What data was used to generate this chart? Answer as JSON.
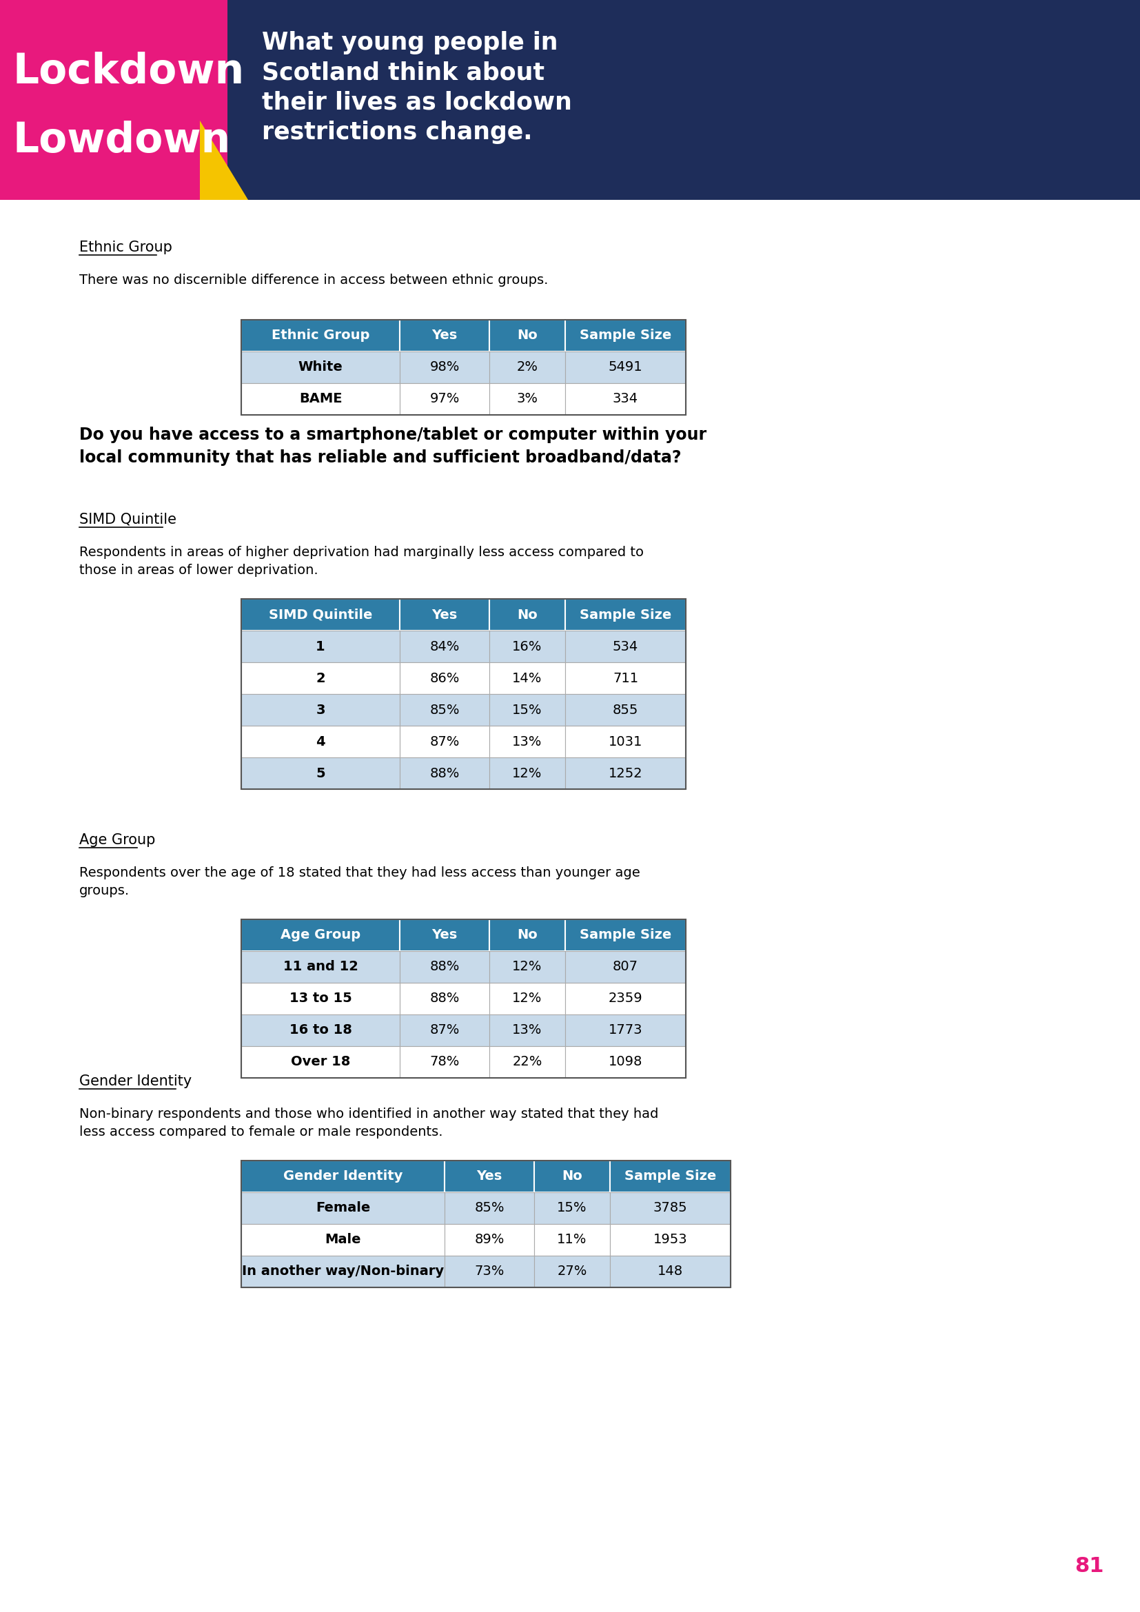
{
  "page_bg": "#ffffff",
  "header_bg": "#1e2d5a",
  "header_text_line1": "What young people in",
  "header_text_line2": "Scotland think about",
  "header_text_line3": "their lives as lockdown",
  "header_text_line4": "restrictions change.",
  "lockdown_bg": "#e8197d",
  "lockdown_text1": "Lockdown",
  "lockdown_text2": "Lowdown",
  "yellow_accent": "#f5c400",
  "section1_heading": "Ethnic Group",
  "section1_body": "There was no discernible difference in access between ethnic groups.",
  "table1_header": [
    "Ethnic Group",
    "Yes",
    "No",
    "Sample Size"
  ],
  "table1_rows": [
    [
      "White",
      "98%",
      "2%",
      "5491"
    ],
    [
      "BAME",
      "97%",
      "3%",
      "334"
    ]
  ],
  "table1_row_colors": [
    "#c8daea",
    "#ffffff"
  ],
  "bold_question": "Do you have access to a smartphone/tablet or computer within your\nlocal community that has reliable and sufficient broadband/data?",
  "section2_heading": "SIMD Quintile",
  "section2_body": "Respondents in areas of higher deprivation had marginally less access compared to\nthose in areas of lower deprivation.",
  "table2_header": [
    "SIMD Quintile",
    "Yes",
    "No",
    "Sample Size"
  ],
  "table2_rows": [
    [
      "1",
      "84%",
      "16%",
      "534"
    ],
    [
      "2",
      "86%",
      "14%",
      "711"
    ],
    [
      "3",
      "85%",
      "15%",
      "855"
    ],
    [
      "4",
      "87%",
      "13%",
      "1031"
    ],
    [
      "5",
      "88%",
      "12%",
      "1252"
    ]
  ],
  "table2_row_colors": [
    "#c8daea",
    "#ffffff",
    "#c8daea",
    "#ffffff",
    "#c8daea"
  ],
  "section3_heading": "Age Group",
  "section3_body": "Respondents over the age of 18 stated that they had less access than younger age\ngroups.",
  "table3_header": [
    "Age Group",
    "Yes",
    "No",
    "Sample Size"
  ],
  "table3_rows": [
    [
      "11 and 12",
      "88%",
      "12%",
      "807"
    ],
    [
      "13 to 15",
      "88%",
      "12%",
      "2359"
    ],
    [
      "16 to 18",
      "87%",
      "13%",
      "1773"
    ],
    [
      "Over 18",
      "78%",
      "22%",
      "1098"
    ]
  ],
  "table3_row_colors": [
    "#c8daea",
    "#ffffff",
    "#c8daea",
    "#ffffff"
  ],
  "section4_heading": "Gender Identity",
  "section4_body": "Non-binary respondents and those who identified in another way stated that they had\nless access compared to female or male respondents.",
  "table4_header": [
    "Gender Identity",
    "Yes",
    "No",
    "Sample Size"
  ],
  "table4_rows": [
    [
      "Female",
      "85%",
      "15%",
      "3785"
    ],
    [
      "Male",
      "89%",
      "11%",
      "1953"
    ],
    [
      "In another way/Non-binary",
      "73%",
      "27%",
      "148"
    ]
  ],
  "table4_row_colors": [
    "#c8daea",
    "#ffffff",
    "#c8daea"
  ],
  "table_header_bg": "#2e7da6",
  "table_header_fg": "#ffffff",
  "page_number": "81",
  "page_number_color": "#e8197d"
}
